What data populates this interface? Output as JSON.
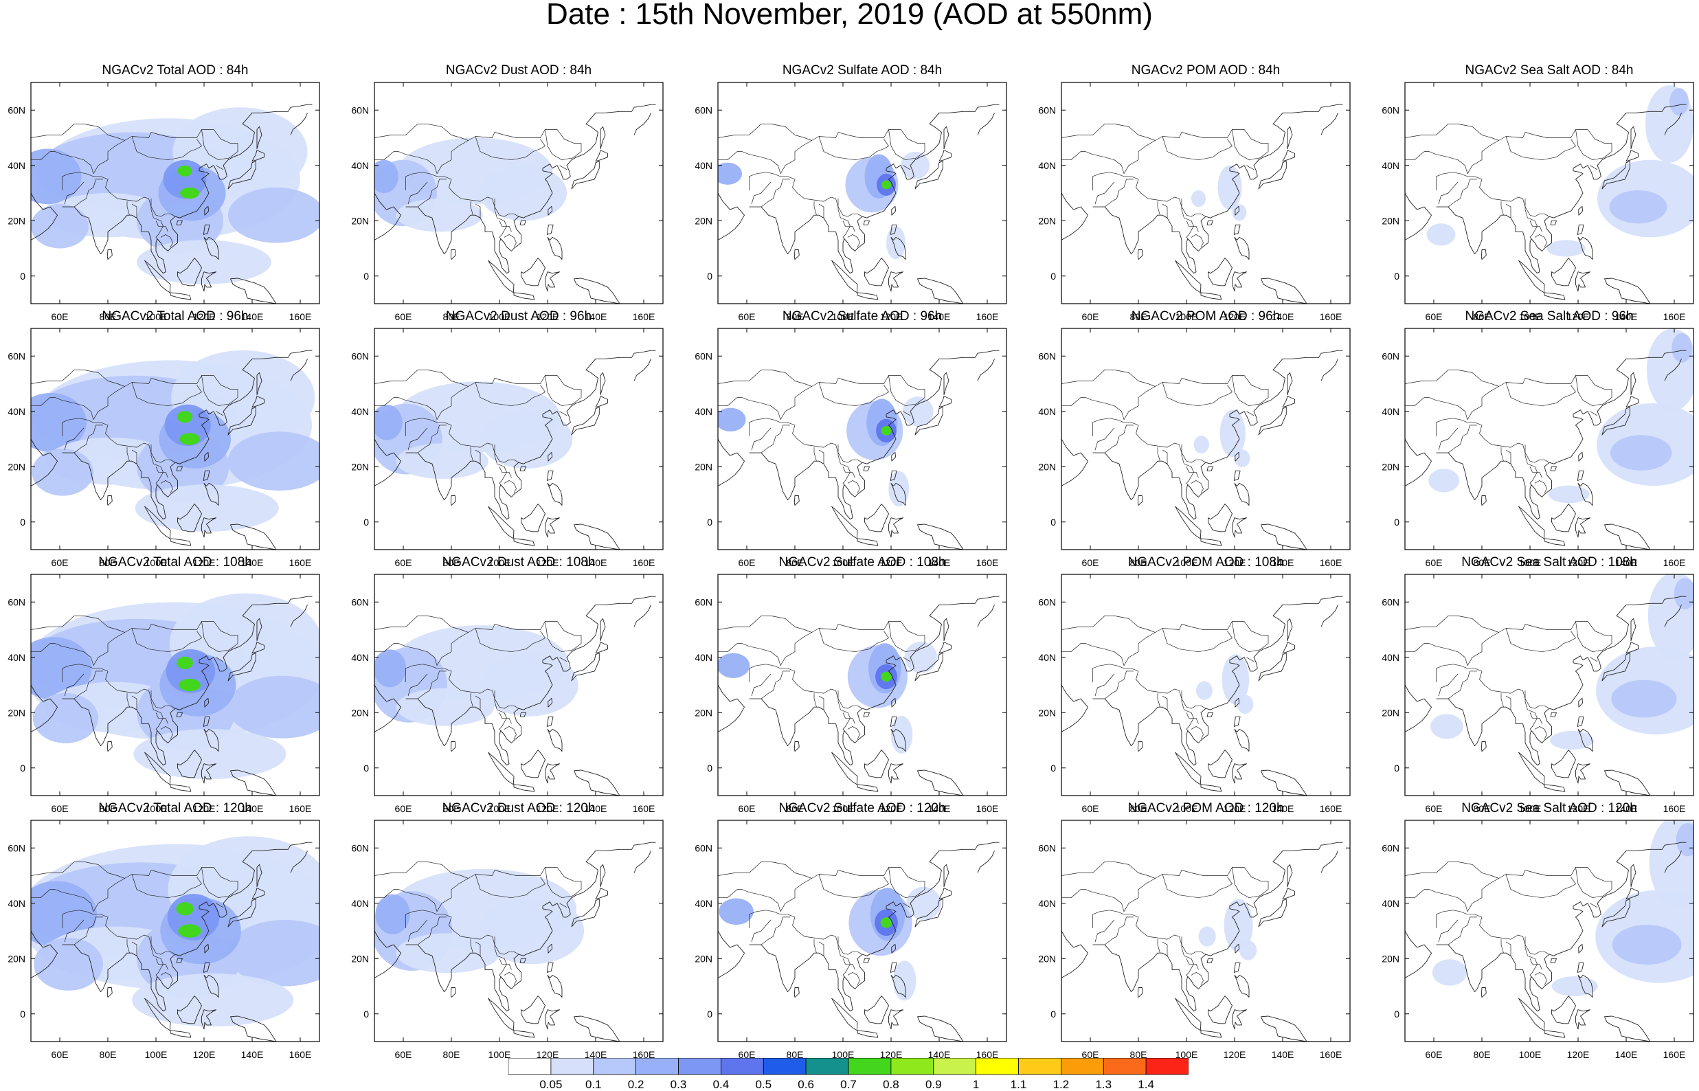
{
  "title": "Date : 15th November, 2019 (AOD at 550nm)",
  "axis": {
    "lon_ticks": [
      "60E",
      "80E",
      "100E",
      "120E",
      "140E",
      "160E"
    ],
    "lat_ticks": [
      "60N",
      "40N",
      "20N",
      "0"
    ]
  },
  "panels": [
    {
      "title": "NGACv2 Total AOD : 84h",
      "species": "total",
      "hour": 84
    },
    {
      "title": "NGACv2 Dust AOD : 84h",
      "species": "dust",
      "hour": 84
    },
    {
      "title": "NGACv2 Sulfate AOD : 84h",
      "species": "sulfate",
      "hour": 84
    },
    {
      "title": "NGACv2 POM AOD : 84h",
      "species": "pom",
      "hour": 84
    },
    {
      "title": "NGACv2 Sea Salt AOD : 84h",
      "species": "seasalt",
      "hour": 84
    },
    {
      "title": "NGACv2 Total AOD : 96h",
      "species": "total",
      "hour": 96
    },
    {
      "title": "NGACv2 Dust AOD : 96h",
      "species": "dust",
      "hour": 96
    },
    {
      "title": "NGACv2 Sulfate AOD : 96h",
      "species": "sulfate",
      "hour": 96
    },
    {
      "title": "NGACv2 POM AOD : 96h",
      "species": "pom",
      "hour": 96
    },
    {
      "title": "NGACv2 Sea Salt AOD : 96h",
      "species": "seasalt",
      "hour": 96
    },
    {
      "title": "NGACv2 Total AOD : 108h",
      "species": "total",
      "hour": 108
    },
    {
      "title": "NGACv2 Dust AOD : 108h",
      "species": "dust",
      "hour": 108
    },
    {
      "title": "NGACv2 Sulfate AOD : 108h",
      "species": "sulfate",
      "hour": 108
    },
    {
      "title": "NGACv2 POM AOD : 108h",
      "species": "pom",
      "hour": 108
    },
    {
      "title": "NGACv2 Sea Salt AOD : 108h",
      "species": "seasalt",
      "hour": 108
    },
    {
      "title": "NGACv2 Total AOD : 120h",
      "species": "total",
      "hour": 120
    },
    {
      "title": "NGACv2 Dust AOD : 120h",
      "species": "dust",
      "hour": 120
    },
    {
      "title": "NGACv2 Sulfate AOD : 120h",
      "species": "sulfate",
      "hour": 120
    },
    {
      "title": "NGACv2 POM AOD : 120h",
      "species": "pom",
      "hour": 120
    },
    {
      "title": "NGACv2 Sea Salt  AOD : 120h",
      "species": "seasalt",
      "hour": 120
    }
  ],
  "colorbar": {
    "labels": [
      "0.05",
      "0.1",
      "0.2",
      "0.3",
      "0.4",
      "0.5",
      "0.6",
      "0.7",
      "0.8",
      "0.9",
      "1",
      "1.1",
      "1.2",
      "1.3",
      "1.4"
    ],
    "colors": [
      "#ffffff",
      "#d6e0fb",
      "#b7c8fa",
      "#98b0f7",
      "#7c98f4",
      "#5f75ee",
      "#1f5ce9",
      "#14918c",
      "#42d61c",
      "#8fe81c",
      "#c9f24a",
      "#ffff00",
      "#fdcb18",
      "#fa9d08",
      "#fb6a1a",
      "#fc2416"
    ]
  }
}
